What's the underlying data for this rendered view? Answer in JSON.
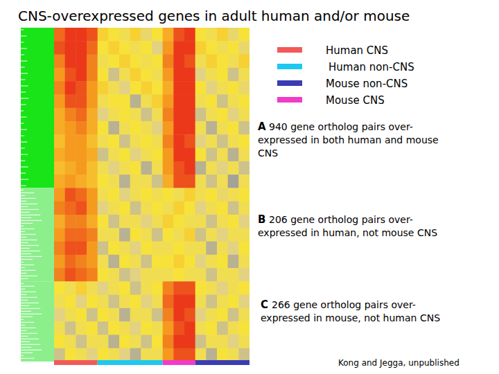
{
  "chart_data": {
    "type": "heatmap",
    "title": "CNS-overexpressed genes in adult human and/or mouse",
    "zlim": [
      -1,
      1
    ],
    "tick_labels": false,
    "legend": "top-right",
    "groups": [
      {
        "name": "Human CNS",
        "color": "#f25a5a"
      },
      {
        "name": "Human non-CNS",
        "color": "#1ec8f0"
      },
      {
        "name": "Mouse non-CNS",
        "color": "#3a3cb4"
      },
      {
        "name": "Mouse CNS",
        "color": "#f03cc8"
      }
    ],
    "column_groups": [
      {
        "group": 0,
        "columns": 4
      },
      {
        "group": 1,
        "columns": 6
      },
      {
        "group": 3,
        "columns": 3
      },
      {
        "group": 2,
        "columns": 5
      }
    ],
    "panels": [
      {
        "label": "A",
        "text": [
          "940 gene ortholog pairs over-",
          "expressed in both human and mouse",
          "CNS"
        ],
        "rows": [
          [
            0.7,
            0.9,
            0.9,
            0.8,
            0.2,
            0.1,
            0.0,
            0.2,
            -0.1,
            0.1,
            0.4,
            0.8,
            0.9,
            0.1,
            0.0,
            0.2,
            -0.1,
            0.1
          ],
          [
            0.8,
            0.9,
            0.9,
            0.7,
            0.1,
            0.2,
            0.1,
            0.0,
            0.1,
            -0.2,
            0.5,
            0.9,
            0.9,
            0.2,
            0.1,
            0.0,
            0.1,
            -0.1
          ],
          [
            0.6,
            0.9,
            0.9,
            0.6,
            0.0,
            0.1,
            0.2,
            0.1,
            0.0,
            0.1,
            0.6,
            0.9,
            0.8,
            0.0,
            0.2,
            0.1,
            0.0,
            0.2
          ],
          [
            0.5,
            0.8,
            0.9,
            0.6,
            0.1,
            -0.3,
            0.0,
            0.2,
            0.1,
            0.0,
            0.5,
            0.9,
            0.9,
            -0.2,
            0.0,
            0.1,
            -0.3,
            0.0
          ],
          [
            0.6,
            0.9,
            0.8,
            0.5,
            0.2,
            0.0,
            -0.2,
            0.1,
            0.2,
            0.1,
            0.4,
            0.9,
            0.9,
            0.1,
            -0.2,
            0.0,
            0.1,
            -0.1
          ],
          [
            0.5,
            0.8,
            0.8,
            0.5,
            0.0,
            0.1,
            0.1,
            -0.4,
            0.0,
            0.2,
            0.5,
            0.9,
            0.9,
            0.0,
            0.1,
            -0.3,
            0.0,
            0.1
          ],
          [
            0.4,
            0.6,
            0.7,
            0.4,
            -0.2,
            0.0,
            0.1,
            0.0,
            -0.3,
            0.0,
            0.6,
            0.9,
            0.9,
            -0.3,
            0.0,
            0.1,
            -0.2,
            0.0
          ],
          [
            0.4,
            0.5,
            0.6,
            0.4,
            0.1,
            -0.4,
            0.0,
            0.1,
            0.0,
            -0.2,
            0.5,
            0.9,
            0.9,
            0.0,
            -0.4,
            0.0,
            0.1,
            -0.3
          ],
          [
            0.3,
            0.5,
            0.5,
            0.3,
            0.0,
            0.1,
            -0.3,
            0.0,
            0.1,
            0.0,
            0.6,
            0.9,
            0.8,
            -0.2,
            0.0,
            -0.3,
            0.0,
            0.1
          ],
          [
            0.4,
            0.5,
            0.5,
            0.4,
            -0.3,
            0.0,
            0.1,
            -0.2,
            0.0,
            0.1,
            0.5,
            0.9,
            0.9,
            0.1,
            -0.3,
            0.0,
            -0.4,
            0.0
          ],
          [
            0.3,
            0.4,
            0.5,
            0.3,
            0.0,
            -0.2,
            0.0,
            0.1,
            -0.4,
            0.0,
            0.5,
            0.8,
            0.9,
            -0.4,
            0.0,
            -0.2,
            0.0,
            -0.3
          ],
          [
            0.4,
            0.5,
            0.4,
            0.3,
            0.1,
            0.0,
            -0.4,
            0.0,
            0.0,
            -0.3,
            0.4,
            0.8,
            0.8,
            0.0,
            -0.3,
            0.0,
            -0.5,
            0.0
          ]
        ]
      },
      {
        "label": "B",
        "text": [
          "206 gene ortholog pairs over-",
          "expressed in human, not mouse CNS"
        ],
        "rows": [
          [
            0.5,
            0.8,
            0.7,
            0.5,
            0.0,
            0.1,
            -0.2,
            0.0,
            0.1,
            0.0,
            0.1,
            0.0,
            0.2,
            0.0,
            0.1,
            -0.1,
            0.0,
            0.1
          ],
          [
            0.6,
            0.7,
            0.8,
            0.5,
            -0.2,
            0.0,
            0.1,
            -0.3,
            0.0,
            0.1,
            0.0,
            0.2,
            0.1,
            -0.2,
            0.0,
            0.1,
            -0.3,
            0.0
          ],
          [
            0.4,
            0.6,
            0.6,
            0.4,
            0.1,
            -0.3,
            0.0,
            0.0,
            -0.2,
            0.0,
            0.2,
            0.1,
            0.0,
            0.0,
            -0.3,
            0.0,
            0.1,
            -0.2
          ],
          [
            0.5,
            0.7,
            0.7,
            0.6,
            0.0,
            0.0,
            -0.4,
            0.1,
            0.0,
            -0.3,
            0.1,
            0.0,
            0.2,
            -0.3,
            0.0,
            -0.2,
            0.0,
            0.0
          ],
          [
            0.6,
            0.8,
            0.8,
            0.5,
            -0.3,
            0.1,
            0.0,
            -0.2,
            0.1,
            0.0,
            0.0,
            0.1,
            0.0,
            0.0,
            -0.4,
            0.0,
            -0.2,
            0.1
          ],
          [
            0.5,
            0.7,
            0.6,
            0.5,
            0.0,
            -0.4,
            0.1,
            0.0,
            -0.3,
            0.1,
            0.1,
            0.2,
            0.1,
            -0.2,
            0.0,
            0.1,
            -0.4,
            0.0
          ],
          [
            0.6,
            0.8,
            0.7,
            0.6,
            0.1,
            0.0,
            -0.3,
            -0.2,
            0.0,
            0.0,
            0.0,
            0.1,
            0.0,
            0.0,
            -0.3,
            0.0,
            0.0,
            -0.2
          ]
        ]
      },
      {
        "label": "C",
        "text": [
          "266 gene ortholog pairs over-",
          "expressed in mouse, not human CNS"
        ],
        "rows": [
          [
            0.1,
            0.0,
            0.2,
            0.0,
            -0.2,
            0.0,
            0.1,
            -0.3,
            0.0,
            0.1,
            0.6,
            0.8,
            0.8,
            0.1,
            0.0,
            -0.2,
            0.0,
            0.1
          ],
          [
            0.0,
            0.1,
            -0.2,
            0.1,
            0.0,
            -0.3,
            0.0,
            0.1,
            -0.2,
            0.0,
            0.7,
            0.9,
            0.9,
            0.0,
            -0.3,
            0.0,
            0.1,
            -0.2
          ],
          [
            -0.2,
            0.0,
            0.1,
            -0.3,
            0.1,
            0.0,
            -0.4,
            0.0,
            0.0,
            -0.3,
            0.6,
            0.9,
            0.8,
            -0.2,
            0.0,
            0.1,
            -0.3,
            0.0
          ],
          [
            0.0,
            -0.3,
            0.0,
            0.1,
            -0.3,
            0.1,
            0.0,
            -0.2,
            0.1,
            0.0,
            0.5,
            0.8,
            0.9,
            0.0,
            0.1,
            -0.3,
            0.0,
            0.1
          ],
          [
            0.1,
            0.0,
            -0.3,
            0.0,
            0.0,
            -0.4,
            0.1,
            0.0,
            -0.3,
            0.1,
            0.6,
            0.9,
            0.9,
            -0.3,
            0.0,
            0.0,
            -0.2,
            0.0
          ],
          [
            -0.3,
            0.1,
            0.0,
            -0.2,
            0.1,
            0.0,
            -0.2,
            -0.4,
            0.0,
            0.0,
            0.5,
            0.8,
            0.8,
            0.0,
            -0.4,
            0.1,
            0.0,
            -0.3
          ]
        ]
      }
    ],
    "credit": "Kong and Jegga, unpublished"
  }
}
